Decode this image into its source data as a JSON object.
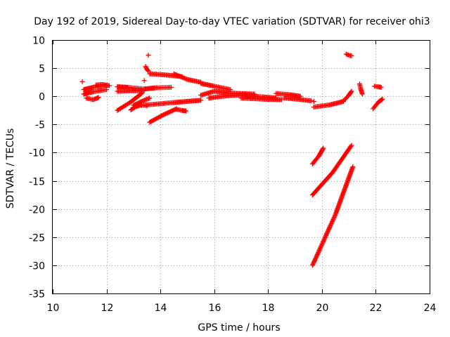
{
  "chart_data": {
    "type": "scatter",
    "title": "Day 192 of 2019, Sidereal Day-to-day VTEC variation (SDTVAR) for receiver ohi3",
    "xlabel": "GPS time / hours",
    "ylabel": "SDTVAR / TECUs",
    "xlim": [
      10,
      24
    ],
    "ylim": [
      -35,
      10
    ],
    "xticks": [
      "10",
      "12",
      "14",
      "16",
      "18",
      "20",
      "22",
      "24"
    ],
    "yticks": [
      "10",
      "5",
      "0",
      "-5",
      "-10",
      "-15",
      "-20",
      "-25",
      "-30",
      "-35"
    ],
    "grid": true,
    "marker": "plus",
    "color": "#ff0000",
    "segments": [
      {
        "x": [
          11.15,
          11.5,
          12.0
        ],
        "y": [
          1.2,
          1.6,
          1.9
        ]
      },
      {
        "x": [
          11.15,
          11.5,
          12.0
        ],
        "y": [
          0.4,
          0.8,
          1.2
        ]
      },
      {
        "x": [
          11.25,
          11.5,
          11.7
        ],
        "y": [
          -0.3,
          -0.6,
          -0.2
        ]
      },
      {
        "x": [
          11.6,
          11.85,
          12.1
        ],
        "y": [
          2.0,
          2.1,
          1.9
        ]
      },
      {
        "x": [
          12.4,
          12.8,
          13.4
        ],
        "y": [
          1.7,
          1.6,
          1.3
        ]
      },
      {
        "x": [
          12.4,
          12.9,
          13.4
        ],
        "y": [
          0.9,
          1.0,
          1.0
        ]
      },
      {
        "x": [
          12.4,
          12.9,
          13.3
        ],
        "y": [
          -2.5,
          -1.0,
          0.5
        ]
      },
      {
        "x": [
          12.9,
          13.1,
          13.3
        ],
        "y": [
          -2.4,
          -1.8,
          -1.5
        ]
      },
      {
        "x": [
          13.0,
          13.3,
          13.6
        ],
        "y": [
          -1.6,
          -0.9,
          -0.3
        ]
      },
      {
        "x": [
          13.45,
          13.5,
          13.55
        ],
        "y": [
          5.3,
          4.8,
          4.5
        ]
      },
      {
        "x": [
          13.4,
          13.8,
          14.4
        ],
        "y": [
          1.3,
          1.5,
          1.6
        ]
      },
      {
        "x": [
          13.6,
          14.2,
          14.8
        ],
        "y": [
          4.0,
          3.8,
          3.5
        ]
      },
      {
        "x": [
          13.3,
          14.5,
          15.5
        ],
        "y": [
          -1.6,
          -1.1,
          -0.7
        ]
      },
      {
        "x": [
          13.6,
          14.1,
          14.6
        ],
        "y": [
          -4.6,
          -3.3,
          -2.2
        ]
      },
      {
        "x": [
          14.6,
          14.8,
          14.95
        ],
        "y": [
          -2.3,
          -2.5,
          -2.6
        ]
      },
      {
        "x": [
          14.5,
          15.0,
          15.5
        ],
        "y": [
          4.0,
          3.0,
          2.5
        ]
      },
      {
        "x": [
          15.5,
          16.0,
          16.6
        ],
        "y": [
          2.3,
          1.8,
          1.2
        ]
      },
      {
        "x": [
          15.5,
          16.0,
          16.5
        ],
        "y": [
          0.2,
          0.9,
          0.6
        ]
      },
      {
        "x": [
          15.8,
          16.5,
          17.2
        ],
        "y": [
          -0.3,
          0.1,
          0.3
        ]
      },
      {
        "x": [
          16.5,
          17.0,
          17.5
        ],
        "y": [
          0.6,
          0.5,
          0.4
        ]
      },
      {
        "x": [
          17.2,
          17.8,
          18.3
        ],
        "y": [
          0.1,
          -0.1,
          -0.3
        ]
      },
      {
        "x": [
          17.0,
          17.8,
          18.5
        ],
        "y": [
          -0.3,
          -0.5,
          -0.6
        ]
      },
      {
        "x": [
          18.3,
          18.8,
          19.2
        ],
        "y": [
          0.5,
          0.3,
          0.0
        ]
      },
      {
        "x": [
          18.6,
          19.1,
          19.6
        ],
        "y": [
          -0.3,
          -0.5,
          -0.8
        ]
      },
      {
        "x": [
          19.7,
          20.3,
          20.8
        ],
        "y": [
          -1.9,
          -1.5,
          -0.9
        ]
      },
      {
        "x": [
          20.8,
          21.0,
          21.1
        ],
        "y": [
          -0.8,
          0.2,
          0.9
        ]
      },
      {
        "x": [
          20.9,
          21.0,
          21.1
        ],
        "y": [
          7.5,
          7.3,
          7.2
        ]
      },
      {
        "x": [
          21.4,
          21.45,
          21.5
        ],
        "y": [
          2.2,
          1.2,
          0.4
        ]
      },
      {
        "x": [
          21.9,
          22.1,
          22.25
        ],
        "y": [
          -2.2,
          -1.0,
          -0.5
        ]
      },
      {
        "x": [
          21.95,
          22.1,
          22.2
        ],
        "y": [
          1.8,
          1.7,
          1.6
        ]
      },
      {
        "x": [
          19.65,
          19.9,
          20.05
        ],
        "y": [
          -12.0,
          -10.5,
          -9.2
        ]
      },
      {
        "x": [
          19.65,
          20.4,
          21.1
        ],
        "y": [
          -17.5,
          -13.5,
          -8.7
        ]
      },
      {
        "x": [
          19.65,
          20.5,
          21.15
        ],
        "y": [
          -30.0,
          -21.0,
          -12.5
        ]
      }
    ],
    "points": [
      {
        "x": 13.55,
        "y": 7.3
      },
      {
        "x": 13.4,
        "y": 2.8
      },
      {
        "x": 11.1,
        "y": 2.6
      },
      {
        "x": 13.5,
        "y": -1.7
      },
      {
        "x": 19.7,
        "y": -0.9
      }
    ]
  }
}
